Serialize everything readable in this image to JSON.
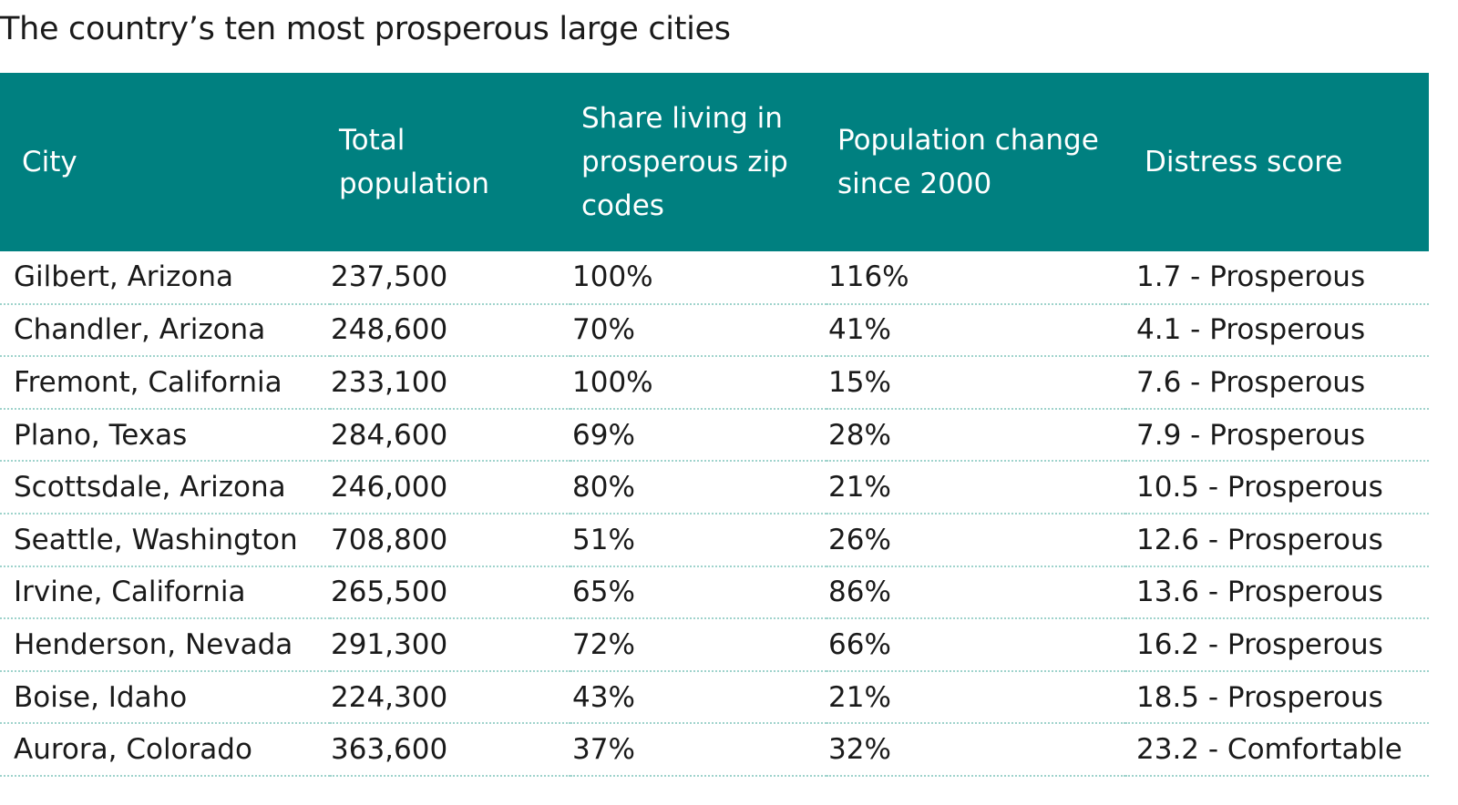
{
  "title": "The country’s ten most prosperous large cities",
  "columns": [
    "City",
    "Total population",
    "Share living in prosperous zip codes",
    "Population change since 2000",
    "Distress score"
  ],
  "rows": [
    [
      "Gilbert, Arizona",
      "237,500",
      "100%",
      "116%",
      "1.7 - Prosperous"
    ],
    [
      "Chandler, Arizona",
      "248,600",
      "70%",
      "41%",
      "4.1 - Prosperous"
    ],
    [
      "Fremont, California",
      "233,100",
      "100%",
      "15%",
      "7.6 - Prosperous"
    ],
    [
      "Plano, Texas",
      "284,600",
      "69%",
      "28%",
      "7.9 - Prosperous"
    ],
    [
      "Scottsdale, Arizona",
      "246,000",
      "80%",
      "21%",
      "10.5 - Prosperous"
    ],
    [
      "Seattle, Washington",
      "708,800",
      "51%",
      "26%",
      "12.6 - Prosperous"
    ],
    [
      "Irvine, California",
      "265,500",
      "65%",
      "86%",
      "13.6 - Prosperous"
    ],
    [
      "Henderson, Nevada",
      "291,300",
      "72%",
      "66%",
      "16.2 - Prosperous"
    ],
    [
      "Boise, Idaho",
      "224,300",
      "43%",
      "21%",
      "18.5 - Prosperous"
    ],
    [
      "Aurora, Colorado",
      "363,600",
      "37%",
      "32%",
      "23.2 - Comfortable"
    ]
  ],
  "colors": {
    "header_bg": "#008080",
    "header_text": "#ffffff",
    "row_divider": "#9fd3cc"
  }
}
